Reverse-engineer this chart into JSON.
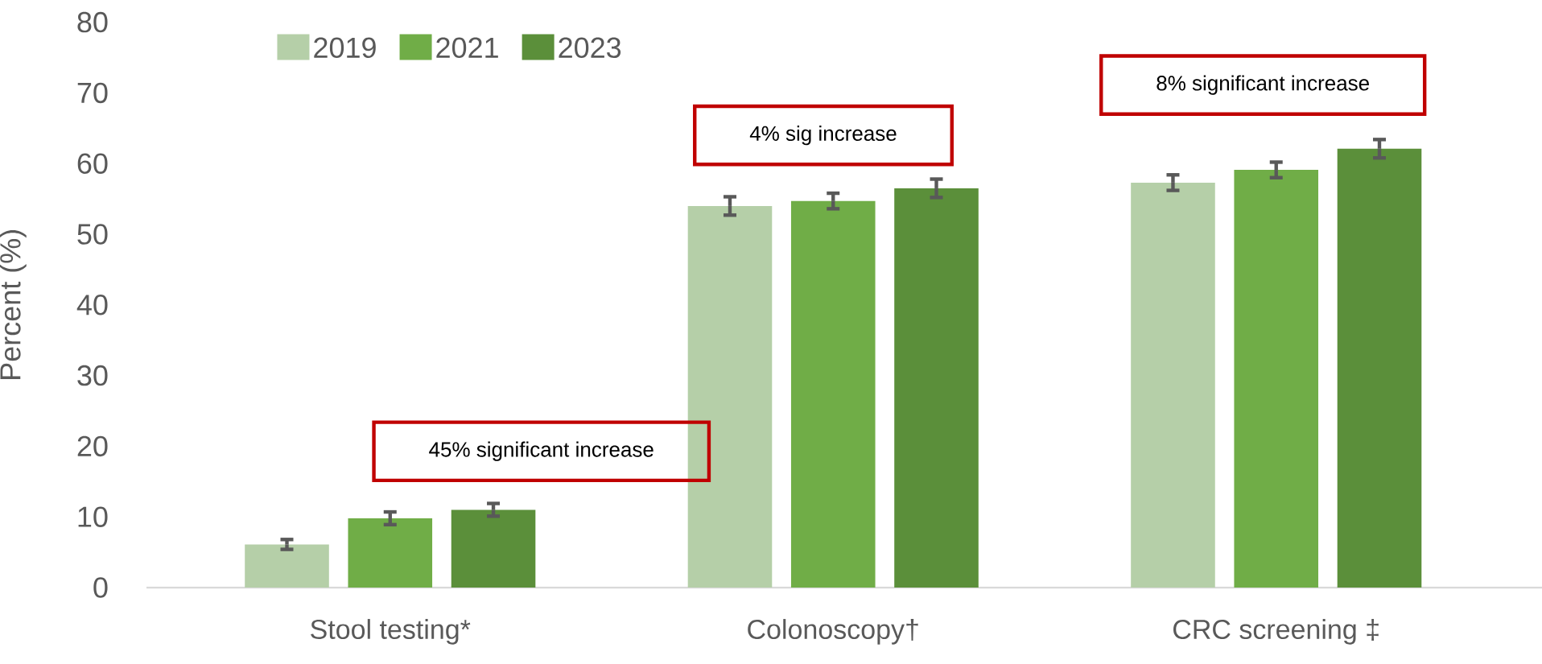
{
  "chart_data": {
    "type": "bar",
    "ylabel": "Percent (%)",
    "categories": [
      "Stool testing*",
      "Colonoscopy†",
      "CRC screening ‡"
    ],
    "series": [
      {
        "name": "2019",
        "color": "#b5cfa8",
        "values": [
          6.1,
          54.0,
          57.3
        ],
        "errors": [
          0.7,
          1.3,
          1.1
        ]
      },
      {
        "name": "2021",
        "color": "#70ad47",
        "values": [
          9.8,
          54.7,
          59.1
        ],
        "errors": [
          0.9,
          1.1,
          1.1
        ]
      },
      {
        "name": "2023",
        "color": "#5b8f3a",
        "values": [
          11.0,
          56.5,
          62.1
        ],
        "errors": [
          0.9,
          1.3,
          1.3
        ]
      }
    ],
    "ylim": [
      0,
      80
    ],
    "yticks": [
      0,
      10,
      20,
      30,
      40,
      50,
      60,
      70,
      80
    ],
    "legend": "top left",
    "annotations": [
      "45% significant increase",
      "4% sig increase",
      "8% significant increase"
    ]
  }
}
